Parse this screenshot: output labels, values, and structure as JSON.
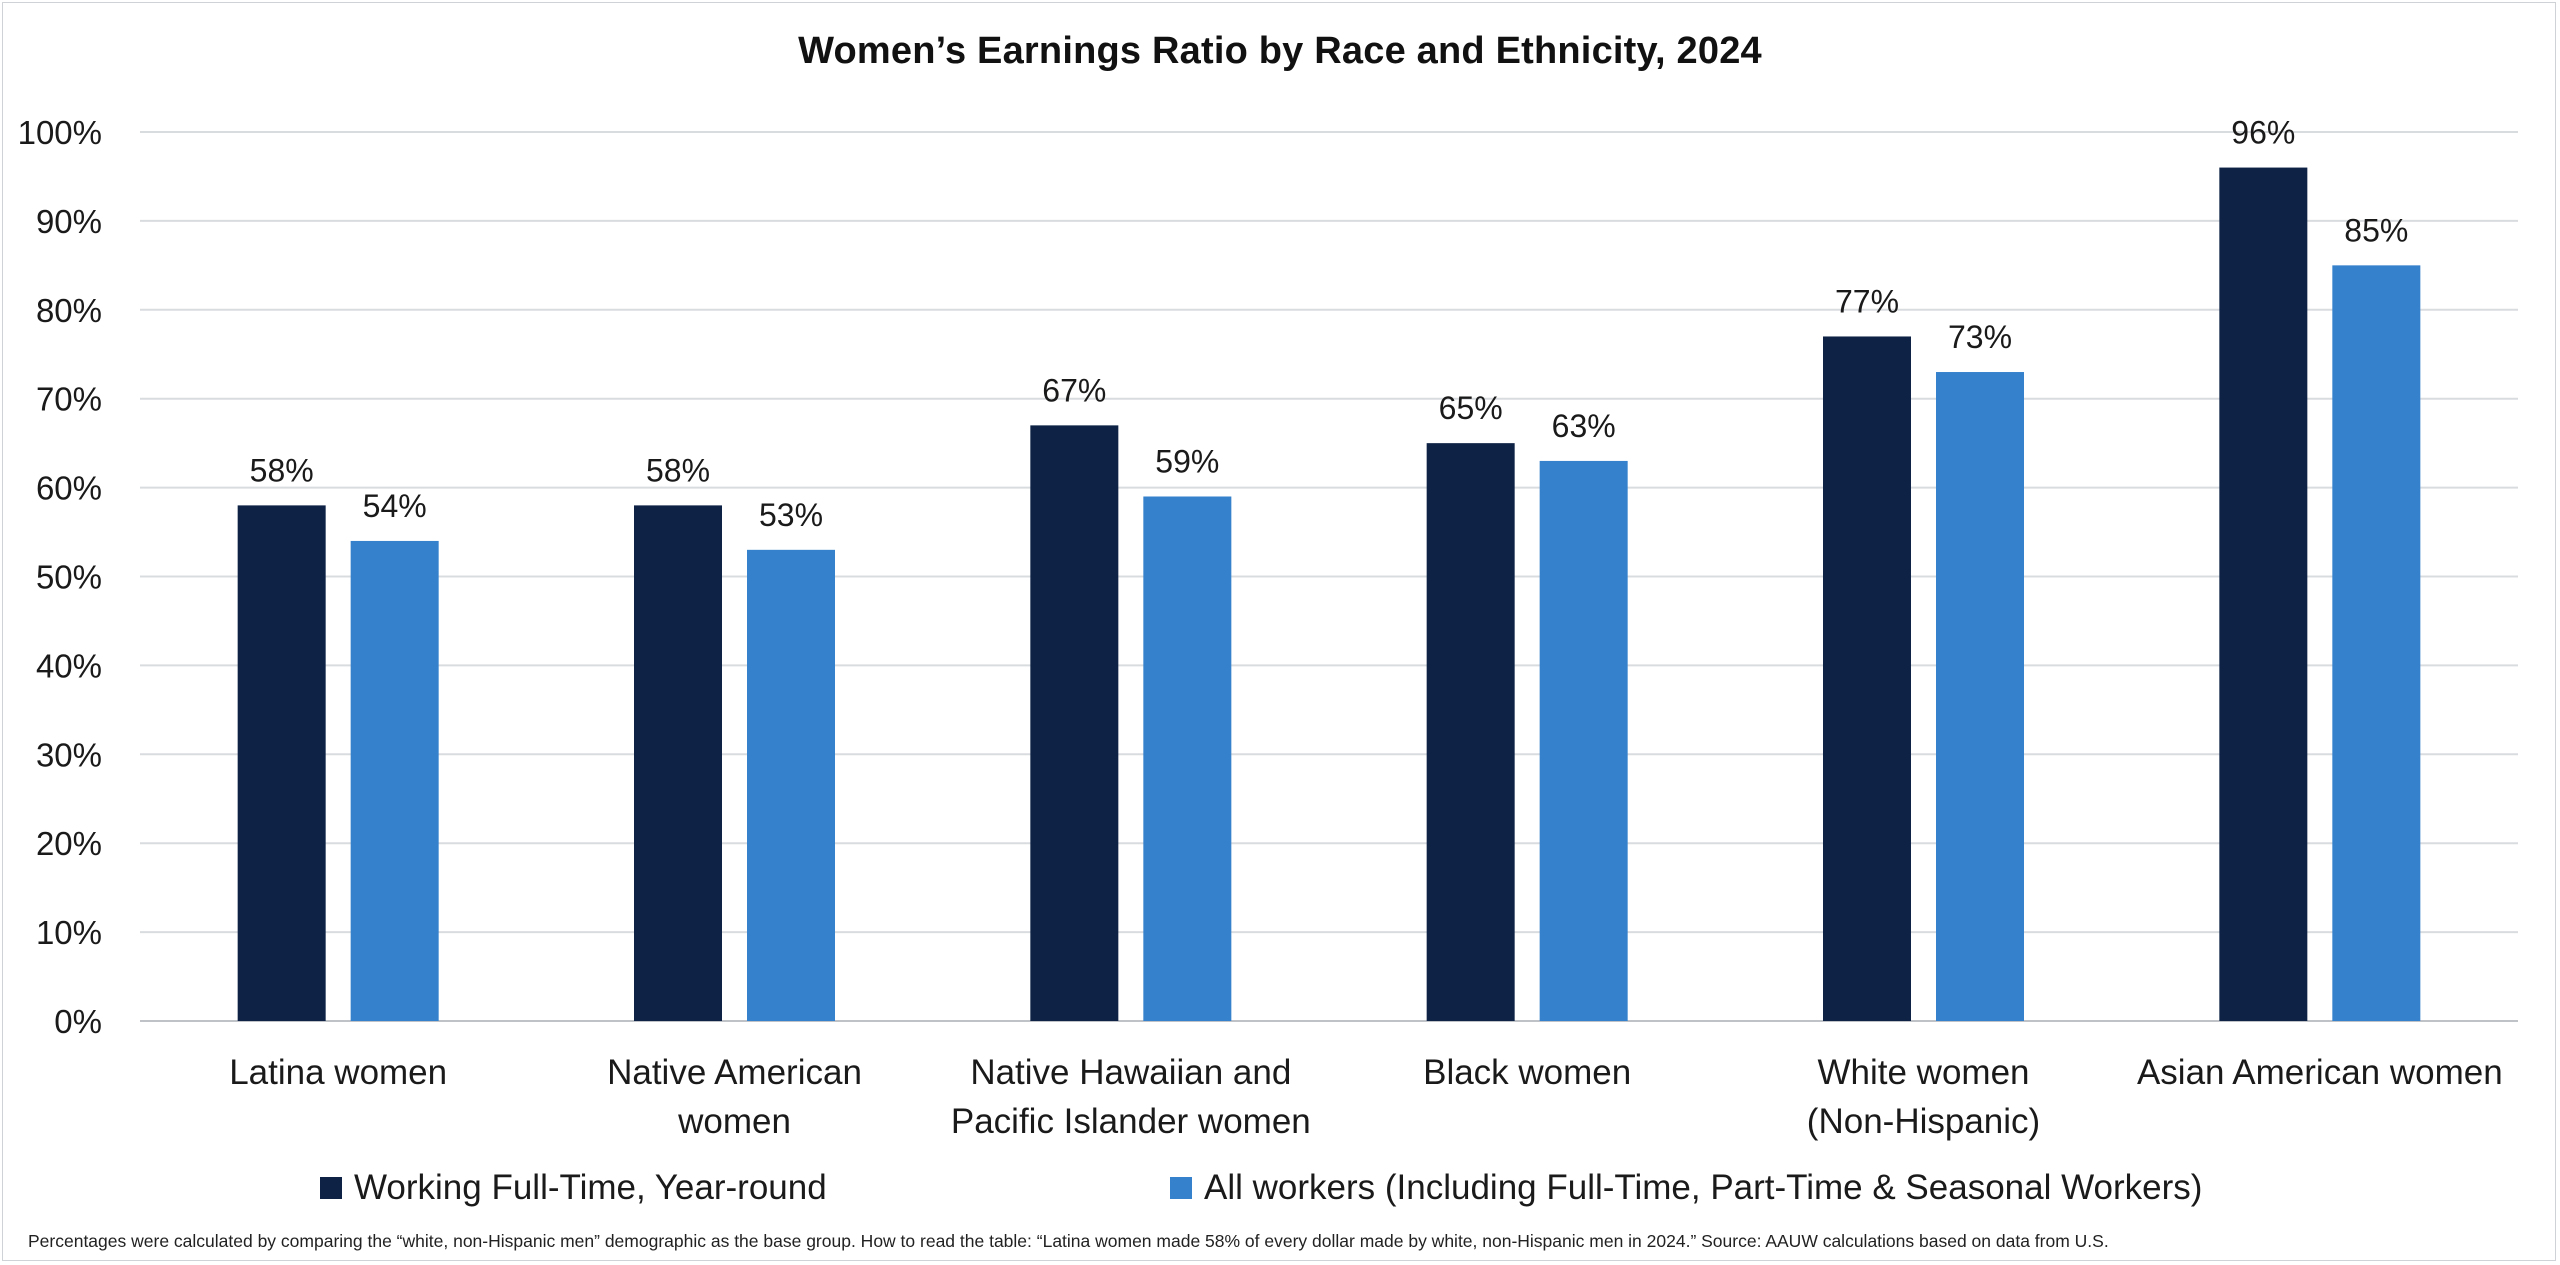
{
  "chart_data": {
    "type": "bar",
    "title": "Women’s Earnings Ratio by Race and Ethnicity, 2024",
    "categories": [
      [
        "Latina women"
      ],
      [
        "Native American",
        "women"
      ],
      [
        "Native Hawaiian and",
        "Pacific Islander women"
      ],
      [
        "Black women"
      ],
      [
        "White women",
        "(Non-Hispanic)"
      ],
      [
        "Asian American women"
      ]
    ],
    "series": [
      {
        "name": "Working Full-Time, Year-round",
        "color": "#0d2245",
        "values": [
          58,
          58,
          67,
          65,
          77,
          96
        ]
      },
      {
        "name": "All workers (Including Full-Time, Part-Time & Seasonal Workers)",
        "color": "#3581cc",
        "values": [
          54,
          53,
          59,
          63,
          73,
          85
        ]
      }
    ],
    "ylim": [
      0,
      100
    ],
    "yticks": [
      "0%",
      "10%",
      "20%",
      "30%",
      "40%",
      "50%",
      "60%",
      "70%",
      "80%",
      "90%",
      "100%"
    ],
    "value_suffix": "%",
    "xlabel": "",
    "ylabel": "",
    "grid": true,
    "legend_position": "bottom"
  },
  "footnote": "Percentages were calculated by comparing the “white, non-Hispanic men” demographic as the base group. How to read the table: “Latina women made 58% of every dollar made by white, non-Hispanic men in 2024.” Source: AAUW calculations based on data from U.S."
}
